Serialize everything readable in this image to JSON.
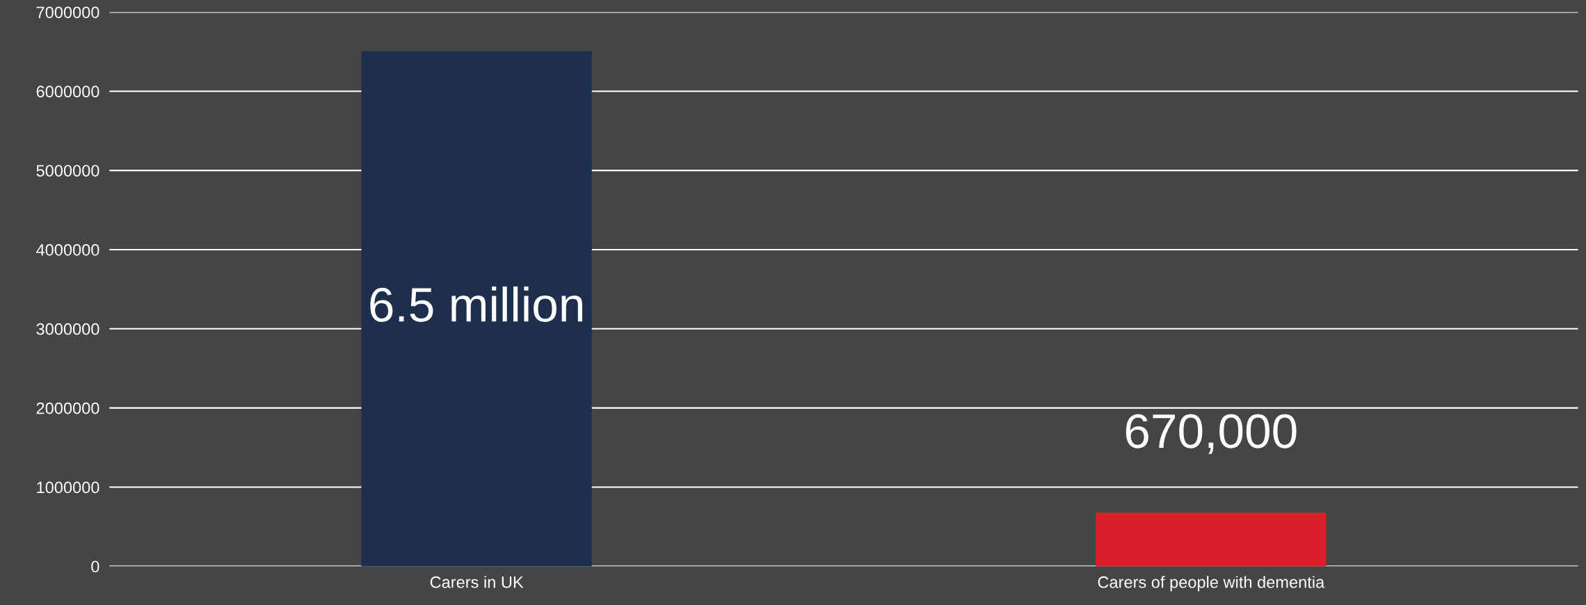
{
  "chart_data": {
    "type": "bar",
    "categories": [
      "Carers in UK",
      "Carers of people with dementia"
    ],
    "values": [
      6500000,
      670000
    ],
    "colors": [
      "#1e2f4e",
      "#d9202a"
    ],
    "value_labels": [
      "6.5 million",
      "670,000"
    ],
    "ylim": [
      0,
      7000000
    ],
    "yticks": [
      0,
      1000000,
      2000000,
      3000000,
      4000000,
      5000000,
      6000000,
      7000000
    ],
    "grid": "y",
    "legend": false
  }
}
